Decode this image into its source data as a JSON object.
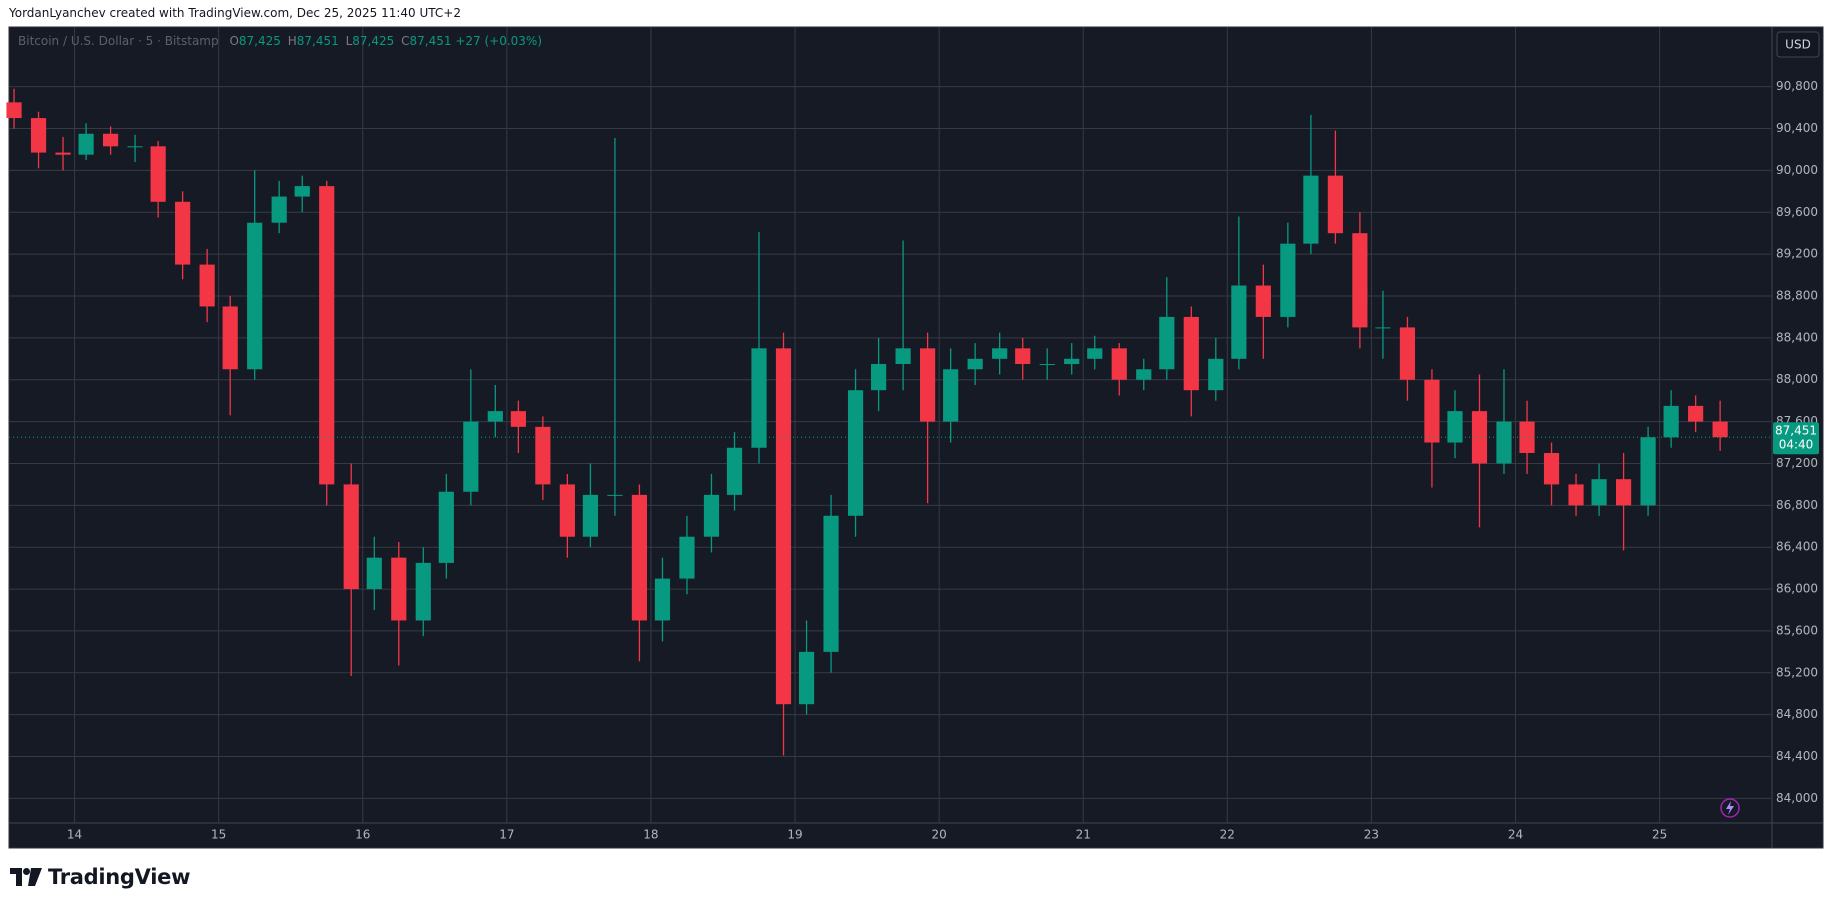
{
  "header": {
    "text": "YordanLyanchev created with TradingView.com, Dec 25, 2025 11:40 UTC+2"
  },
  "footer": {
    "logo": "TradingView"
  },
  "chart_data": {
    "type": "candlestick",
    "legend": {
      "symbol": "Bitcoin / U.S. Dollar · 5 · Bitstamp",
      "items": [
        {
          "label": "O",
          "value": "87,425"
        },
        {
          "label": "H",
          "value": "87,451"
        },
        {
          "label": "L",
          "value": "87,425"
        },
        {
          "label": "C",
          "value": "87,451"
        }
      ],
      "change": "+27 (+0.03%)"
    },
    "currency": "USD",
    "up_color": "#089981",
    "down_color": "#f23645",
    "grid": true,
    "x": [
      13.58,
      13.75,
      13.92,
      14.08,
      14.25,
      14.42,
      14.58,
      14.75,
      14.92,
      15.08,
      15.25,
      15.42,
      15.58,
      15.75,
      15.92,
      16.08,
      16.25,
      16.42,
      16.58,
      16.75,
      16.92,
      17.08,
      17.25,
      17.42,
      17.58,
      17.75,
      17.92,
      18.08,
      18.25,
      18.42,
      18.58,
      18.75,
      18.92,
      19.08,
      19.25,
      19.42,
      19.58,
      19.75,
      19.92,
      20.08,
      20.25,
      20.42,
      20.58,
      20.75,
      20.92,
      21.08,
      21.25,
      21.42,
      21.58,
      21.75,
      21.92,
      22.08,
      22.25,
      22.42,
      22.58,
      22.75,
      22.92,
      23.08,
      23.25,
      23.42,
      23.58,
      23.75,
      23.92,
      24.08,
      24.25,
      24.42,
      24.58,
      24.75,
      24.92,
      25.08,
      25.25,
      25.42
    ],
    "open": [
      90650,
      90500,
      90170,
      90150,
      90350,
      90230,
      90230,
      89700,
      89100,
      88700,
      88100,
      89500,
      89750,
      89850,
      87000,
      86000,
      86300,
      85700,
      86250,
      86930,
      87600,
      87700,
      87550,
      87000,
      86500,
      86900,
      86900,
      85700,
      86100,
      86500,
      86900,
      87350,
      88300,
      84900,
      85400,
      86700,
      87900,
      88150,
      88300,
      87600,
      88100,
      88200,
      88300,
      88150,
      88150,
      88200,
      88300,
      88000,
      88100,
      88600,
      87900,
      88200,
      88900,
      88600,
      89300,
      89950,
      89400,
      88500,
      88500,
      88000,
      87400,
      87700,
      87200,
      87600,
      87300,
      87000,
      86800,
      87050,
      86800,
      87450,
      87750,
      87600
    ],
    "high": [
      90780,
      90560,
      90320,
      90450,
      90420,
      90340,
      90280,
      89800,
      89250,
      88800,
      90000,
      89900,
      89950,
      89900,
      87200,
      86500,
      86450,
      86400,
      87100,
      88100,
      87950,
      87800,
      87650,
      87100,
      87200,
      90310,
      87000,
      86300,
      86700,
      87100,
      87500,
      89410,
      88450,
      85700,
      86900,
      88100,
      88400,
      89330,
      88450,
      88300,
      88350,
      88450,
      88400,
      88300,
      88350,
      88420,
      88350,
      88200,
      88980,
      88700,
      88400,
      89560,
      89100,
      89500,
      90530,
      90380,
      89600,
      88850,
      88600,
      88100,
      87900,
      88050,
      88100,
      87800,
      87400,
      87100,
      87200,
      87300,
      87550,
      87900,
      87850,
      87800
    ],
    "low": [
      90400,
      90020,
      90000,
      90100,
      90150,
      90080,
      89550,
      88960,
      88550,
      87660,
      88000,
      89400,
      89600,
      86800,
      85170,
      85800,
      85270,
      85550,
      86100,
      86800,
      87450,
      87300,
      86850,
      86300,
      86400,
      86700,
      85310,
      85500,
      85950,
      86350,
      86750,
      87200,
      84410,
      84800,
      85200,
      86500,
      87700,
      87900,
      86820,
      87400,
      87950,
      88050,
      88000,
      88000,
      88050,
      88100,
      87850,
      87900,
      88000,
      87650,
      87800,
      88100,
      88200,
      88500,
      89200,
      89300,
      88300,
      88200,
      87800,
      86970,
      87250,
      86590,
      87100,
      87100,
      86800,
      86700,
      86700,
      86370,
      86700,
      87350,
      87500,
      87320
    ],
    "close": [
      90500,
      90170,
      90150,
      90350,
      90230,
      90230,
      89700,
      89100,
      88700,
      88100,
      89500,
      89750,
      89850,
      87000,
      86000,
      86300,
      85700,
      86250,
      86930,
      87600,
      87700,
      87550,
      87000,
      86500,
      86900,
      86900,
      85700,
      86100,
      86500,
      86900,
      87350,
      88300,
      84900,
      85400,
      86700,
      87900,
      88150,
      88300,
      87600,
      88100,
      88200,
      88300,
      88150,
      88150,
      88200,
      88300,
      88000,
      88100,
      88600,
      87900,
      88200,
      88900,
      88600,
      89300,
      89950,
      89400,
      88500,
      88500,
      88000,
      87400,
      87700,
      87200,
      87600,
      87300,
      87000,
      86800,
      87050,
      86800,
      87450,
      87750,
      87600,
      87451
    ],
    "last_price": {
      "value": 87451,
      "label": "87,451",
      "countdown": "04:40"
    },
    "xlim": [
      13.545,
      25.78
    ],
    "xticks": [
      14,
      15,
      16,
      17,
      18,
      19,
      20,
      21,
      22,
      23,
      24,
      25
    ],
    "ylim": [
      83765,
      91370
    ],
    "yticks": [
      {
        "value": 84000,
        "label": "84,000"
      },
      {
        "value": 84400,
        "label": "84,400"
      },
      {
        "value": 84800,
        "label": "84,800"
      },
      {
        "value": 85200,
        "label": "85,200"
      },
      {
        "value": 85600,
        "label": "85,600"
      },
      {
        "value": 86000,
        "label": "86,000"
      },
      {
        "value": 86400,
        "label": "86,400"
      },
      {
        "value": 86800,
        "label": "86,800"
      },
      {
        "value": 87200,
        "label": "87,200"
      },
      {
        "value": 87600,
        "label": "87,600"
      },
      {
        "value": 88000,
        "label": "88,000"
      },
      {
        "value": 88400,
        "label": "88,400"
      },
      {
        "value": 88800,
        "label": "88,800"
      },
      {
        "value": 89200,
        "label": "89,200"
      },
      {
        "value": 89600,
        "label": "89,600"
      },
      {
        "value": 90000,
        "label": "90,000"
      },
      {
        "value": 90400,
        "label": "90,400"
      },
      {
        "value": 90800,
        "label": "90,800"
      }
    ]
  }
}
